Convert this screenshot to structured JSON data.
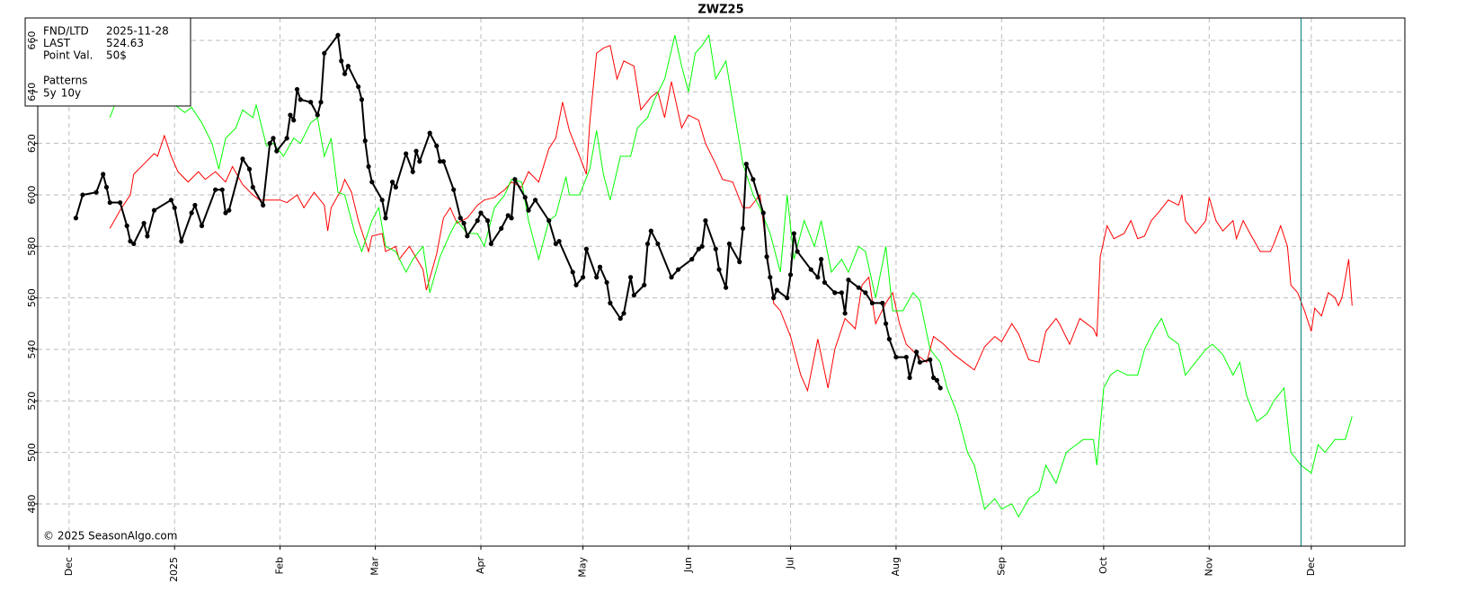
{
  "chart_data": {
    "type": "line",
    "title": "ZWZ25",
    "xlim": [
      -9.2,
      392.5
    ],
    "xticks": [
      {
        "value": 0,
        "label": "Dec"
      },
      {
        "value": 31,
        "label": "2025"
      },
      {
        "value": 62,
        "label": "Feb"
      },
      {
        "value": 90,
        "label": "Mar"
      },
      {
        "value": 121,
        "label": "Apr"
      },
      {
        "value": 151,
        "label": "May"
      },
      {
        "value": 182,
        "label": "Jun"
      },
      {
        "value": 212,
        "label": "Jul"
      },
      {
        "value": 243,
        "label": "Aug"
      },
      {
        "value": 274,
        "label": "Sep"
      },
      {
        "value": 304,
        "label": "Oct"
      },
      {
        "value": 335,
        "label": "Nov"
      },
      {
        "value": 365,
        "label": "Dec"
      }
    ],
    "ylim": [
      463.6,
      668.7
    ],
    "yticks": [
      480,
      500,
      520,
      540,
      560,
      580,
      600,
      620,
      640,
      660
    ],
    "grid": true,
    "vlines": [
      {
        "x": 362,
        "color": "#008080"
      }
    ],
    "series": [
      {
        "name": "5y",
        "color": "#ff0000",
        "x": [
          12,
          15,
          18,
          19,
          22,
          25,
          26,
          28,
          30,
          32,
          35,
          38,
          40,
          43,
          46,
          48,
          51,
          54,
          56,
          59,
          62,
          64,
          67,
          69,
          72,
          75,
          76,
          77,
          80,
          81,
          83,
          85,
          88,
          89,
          92,
          93,
          96,
          97,
          100,
          104,
          105,
          108,
          110,
          112,
          114,
          117,
          120,
          122,
          125,
          128,
          130,
          133,
          135,
          138,
          141,
          143,
          145,
          147,
          150,
          152,
          153,
          155,
          157,
          159,
          161,
          163,
          166,
          168,
          171,
          173,
          175,
          177,
          180,
          182,
          185,
          187,
          190,
          192,
          195,
          198,
          200,
          203,
          205,
          207,
          209,
          212,
          215,
          217,
          220,
          223,
          225,
          228,
          231,
          233,
          235,
          237,
          240,
          242,
          244,
          246,
          249,
          252,
          254,
          257,
          260,
          264,
          266,
          269,
          272,
          274,
          277,
          279,
          282,
          285,
          287,
          290,
          291,
          294,
          297,
          299,
          301,
          302,
          303,
          305,
          307,
          310,
          312,
          314,
          316,
          318,
          320,
          323,
          326,
          327,
          328,
          331,
          334,
          335,
          337,
          339,
          342,
          343,
          345,
          347,
          350,
          353,
          354,
          356,
          358,
          359,
          361,
          363,
          365,
          366,
          368,
          370,
          372,
          373,
          374,
          376,
          377
        ],
        "values": [
          587,
          594,
          600,
          608,
          612,
          616,
          615,
          623,
          615,
          609,
          605,
          609,
          606,
          609,
          605,
          611,
          604,
          600,
          598,
          598,
          598,
          597,
          600,
          595,
          601,
          596,
          586,
          595,
          602,
          606,
          601,
          590,
          578,
          584,
          585,
          578,
          580,
          575,
          580,
          571,
          563,
          577,
          591,
          595,
          589,
          591,
          596,
          598,
          599,
          602,
          605,
          603,
          609,
          605,
          618,
          622,
          636,
          625,
          615,
          608,
          628,
          655,
          657,
          658,
          645,
          652,
          650,
          633,
          638,
          640,
          630,
          644,
          626,
          631,
          629,
          620,
          612,
          606,
          605,
          595,
          595,
          600,
          578,
          558,
          555,
          545,
          530,
          524,
          544,
          525,
          540,
          552,
          548,
          565,
          568,
          550,
          558,
          562,
          550,
          542,
          538,
          535,
          545,
          542,
          538,
          534,
          532,
          541,
          545,
          543,
          550,
          546,
          536,
          535,
          547,
          552,
          550,
          542,
          552,
          550,
          548,
          545,
          576,
          588,
          583,
          585,
          590,
          583,
          584,
          590,
          593,
          598,
          596,
          600,
          590,
          585,
          590,
          599,
          590,
          586,
          590,
          583,
          590,
          585,
          578,
          578,
          581,
          588,
          580,
          565,
          562,
          555,
          547,
          556,
          553,
          562,
          560,
          557,
          560,
          575,
          557
        ]
      },
      {
        "name": "10y",
        "color": "#00ff00",
        "x": [
          12,
          14,
          17,
          19,
          22,
          25,
          27,
          30,
          31,
          34,
          36,
          39,
          42,
          44,
          46,
          49,
          51,
          54,
          55,
          58,
          60,
          63,
          66,
          68,
          71,
          73,
          75,
          77,
          79,
          81,
          84,
          86,
          89,
          91,
          93,
          96,
          99,
          101,
          104,
          106,
          109,
          112,
          114,
          117,
          120,
          122,
          125,
          128,
          130,
          133,
          135,
          138,
          141,
          143,
          146,
          147,
          150,
          153,
          155,
          157,
          159,
          162,
          165,
          167,
          170,
          172,
          175,
          178,
          180,
          182,
          184,
          186,
          188,
          190,
          193,
          196,
          198,
          201,
          203,
          206,
          209,
          211,
          213,
          216,
          219,
          221,
          224,
          227,
          229,
          232,
          234,
          237,
          240,
          242,
          245,
          248,
          250,
          253,
          256,
          258,
          261,
          264,
          266,
          269,
          272,
          274,
          277,
          279,
          282,
          285,
          287,
          290,
          293,
          295,
          298,
          301,
          302,
          304,
          306,
          308,
          311,
          314,
          316,
          319,
          321,
          323,
          326,
          328,
          331,
          334,
          336,
          339,
          342,
          344,
          346,
          349,
          352,
          354,
          357,
          359,
          362,
          365,
          367,
          369,
          372,
          375,
          377
        ],
        "values": [
          630,
          637,
          640,
          635,
          638,
          640,
          640,
          642,
          635,
          632,
          634,
          628,
          620,
          610,
          622,
          626,
          633,
          630,
          635,
          619,
          620,
          615,
          622,
          620,
          628,
          630,
          615,
          622,
          601,
          600,
          585,
          578,
          590,
          595,
          580,
          578,
          570,
          575,
          580,
          562,
          576,
          585,
          590,
          585,
          585,
          580,
          595,
          600,
          606,
          605,
          590,
          575,
          590,
          592,
          607,
          600,
          600,
          610,
          625,
          608,
          598,
          615,
          615,
          626,
          630,
          637,
          645,
          662,
          650,
          640,
          655,
          658,
          662,
          645,
          652,
          628,
          612,
          600,
          595,
          585,
          570,
          600,
          575,
          590,
          580,
          590,
          570,
          575,
          570,
          580,
          578,
          560,
          580,
          555,
          555,
          562,
          559,
          540,
          535,
          525,
          515,
          500,
          495,
          478,
          482,
          478,
          480,
          475,
          482,
          485,
          495,
          488,
          500,
          502,
          505,
          505,
          495,
          525,
          530,
          532,
          530,
          530,
          540,
          548,
          552,
          545,
          542,
          530,
          535,
          540,
          542,
          538,
          530,
          535,
          522,
          512,
          515,
          520,
          525,
          500,
          495,
          492,
          503,
          500,
          505,
          505,
          514
        ]
      },
      {
        "color": "#000000",
        "markers": true,
        "x": [
          2,
          4,
          8,
          10,
          11,
          12,
          15,
          17,
          18,
          19,
          22,
          23,
          25,
          30,
          31,
          33,
          36,
          37,
          39,
          43,
          45,
          46,
          47,
          51,
          53,
          54,
          57,
          59,
          60,
          61,
          64,
          65,
          66,
          67,
          68,
          71,
          73,
          74,
          75,
          79,
          80,
          81,
          82,
          85,
          86,
          87,
          88,
          89,
          92,
          93,
          95,
          96,
          99,
          101,
          102,
          103,
          106,
          108,
          109,
          110,
          113,
          115,
          116,
          117,
          120,
          121,
          123,
          124,
          127,
          129,
          130,
          131,
          134,
          135,
          137,
          141,
          143,
          144,
          148,
          149,
          151,
          152,
          155,
          156,
          158,
          159,
          162,
          163,
          165,
          166,
          169,
          170,
          171,
          173,
          177,
          179,
          183,
          185,
          186,
          187,
          190,
          191,
          193,
          194,
          197,
          198,
          199,
          201,
          204,
          205,
          206,
          207,
          208,
          211,
          212,
          213,
          214,
          218,
          220,
          221,
          222,
          225,
          227,
          228,
          229,
          232,
          234,
          236,
          239,
          240,
          241,
          243,
          246,
          247,
          249,
          250,
          253,
          254,
          255,
          256
        ],
        "values": [
          591,
          600,
          601,
          608,
          603,
          597,
          597,
          588,
          582,
          581,
          589,
          584,
          594,
          598,
          595,
          582,
          593,
          596,
          588,
          602,
          602,
          593,
          594,
          614,
          610,
          603,
          596,
          620,
          622,
          617,
          622,
          631,
          629,
          641,
          637,
          636,
          631,
          636,
          655,
          662,
          652,
          647,
          650,
          642,
          637,
          621,
          611,
          605,
          598,
          591,
          605,
          603,
          616,
          609,
          617,
          613,
          624,
          619,
          613,
          613,
          602,
          591,
          589,
          584,
          590,
          593,
          590,
          581,
          587,
          592,
          591,
          606,
          599,
          594,
          598,
          590,
          581,
          582,
          570,
          565,
          568,
          579,
          568,
          572,
          566,
          558,
          552,
          554,
          568,
          561,
          565,
          581,
          586,
          581,
          568,
          571,
          575,
          579,
          580,
          590,
          579,
          571,
          564,
          581,
          574,
          587,
          612,
          606,
          593,
          576,
          568,
          560,
          563,
          560,
          569,
          585,
          578,
          571,
          568,
          575,
          566,
          562,
          562,
          554,
          567,
          564,
          562,
          558,
          558,
          550,
          544,
          537,
          537,
          529,
          539,
          535,
          536,
          529,
          528,
          525
        ]
      }
    ],
    "info": {
      "rows": [
        {
          "label": "FND/LTD",
          "value": "2025-11-28"
        },
        {
          "label": "LAST",
          "value": "524.63"
        },
        {
          "label": "Point Val.",
          "value": "50$"
        }
      ],
      "patterns_title": "Patterns"
    },
    "credit": "© 2025 SeasonAlgo.com"
  }
}
